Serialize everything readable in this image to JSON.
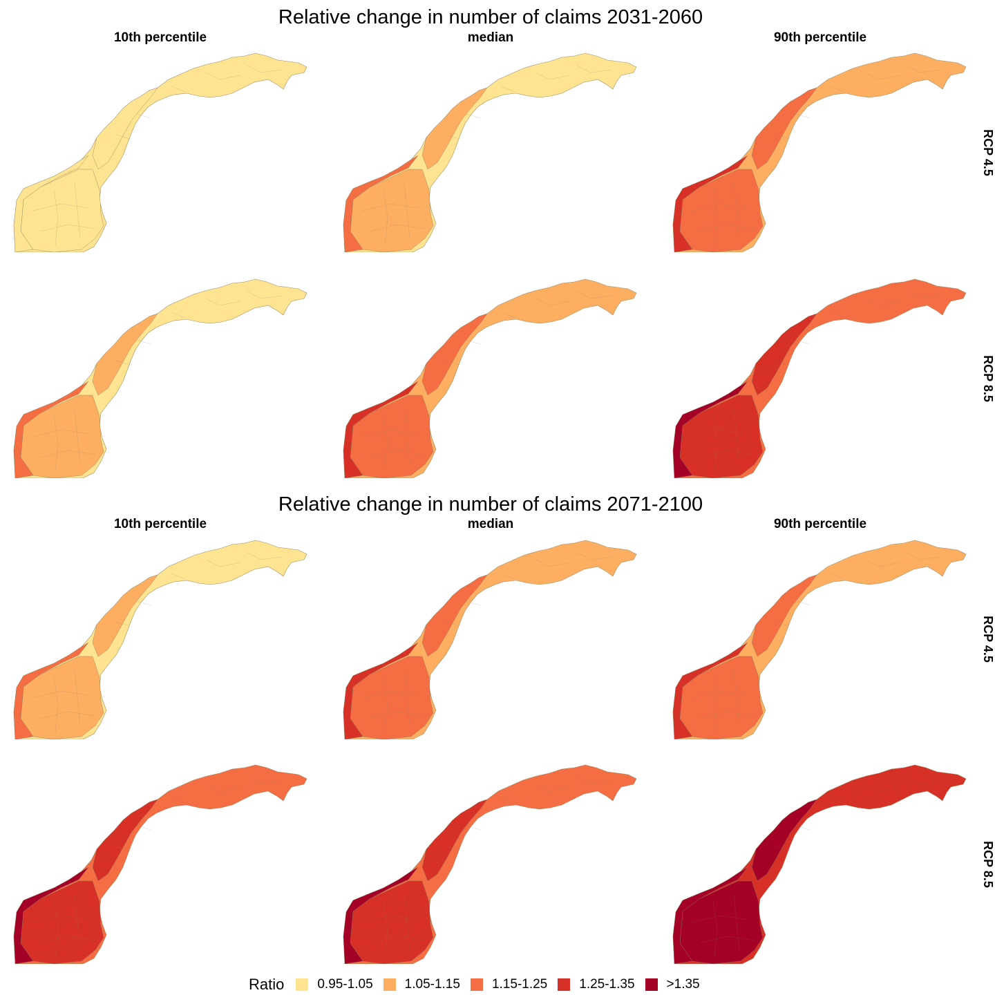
{
  "blocks": [
    {
      "title": "Relative change in number of claims 2031-2060",
      "columns": [
        "10th percentile",
        "median",
        "90th percentile"
      ],
      "rows": [
        "RCP 4.5",
        "RCP 8.5"
      ],
      "panels": [
        [
          "c0",
          "c1",
          "c2"
        ],
        [
          "c1",
          "c2",
          "c3"
        ]
      ]
    },
    {
      "title": "Relative change in number of claims 2071-2100",
      "columns": [
        "10th percentile",
        "median",
        "90th percentile"
      ],
      "rows": [
        "RCP 4.5",
        "RCP 8.5"
      ],
      "panels": [
        [
          "c1",
          "c2",
          "c2"
        ],
        [
          "c3",
          "c3",
          "c4"
        ]
      ]
    }
  ],
  "legend": {
    "title": "Ratio",
    "items": [
      {
        "label": "0.95-1.05",
        "color": "#FEE391"
      },
      {
        "label": "1.05-1.15",
        "color": "#FDAE61"
      },
      {
        "label": "1.15-1.25",
        "color": "#F46D43"
      },
      {
        "label": "1.25-1.35",
        "color": "#D73027"
      },
      {
        "label": ">1.35",
        "color": "#A50026"
      }
    ]
  }
}
